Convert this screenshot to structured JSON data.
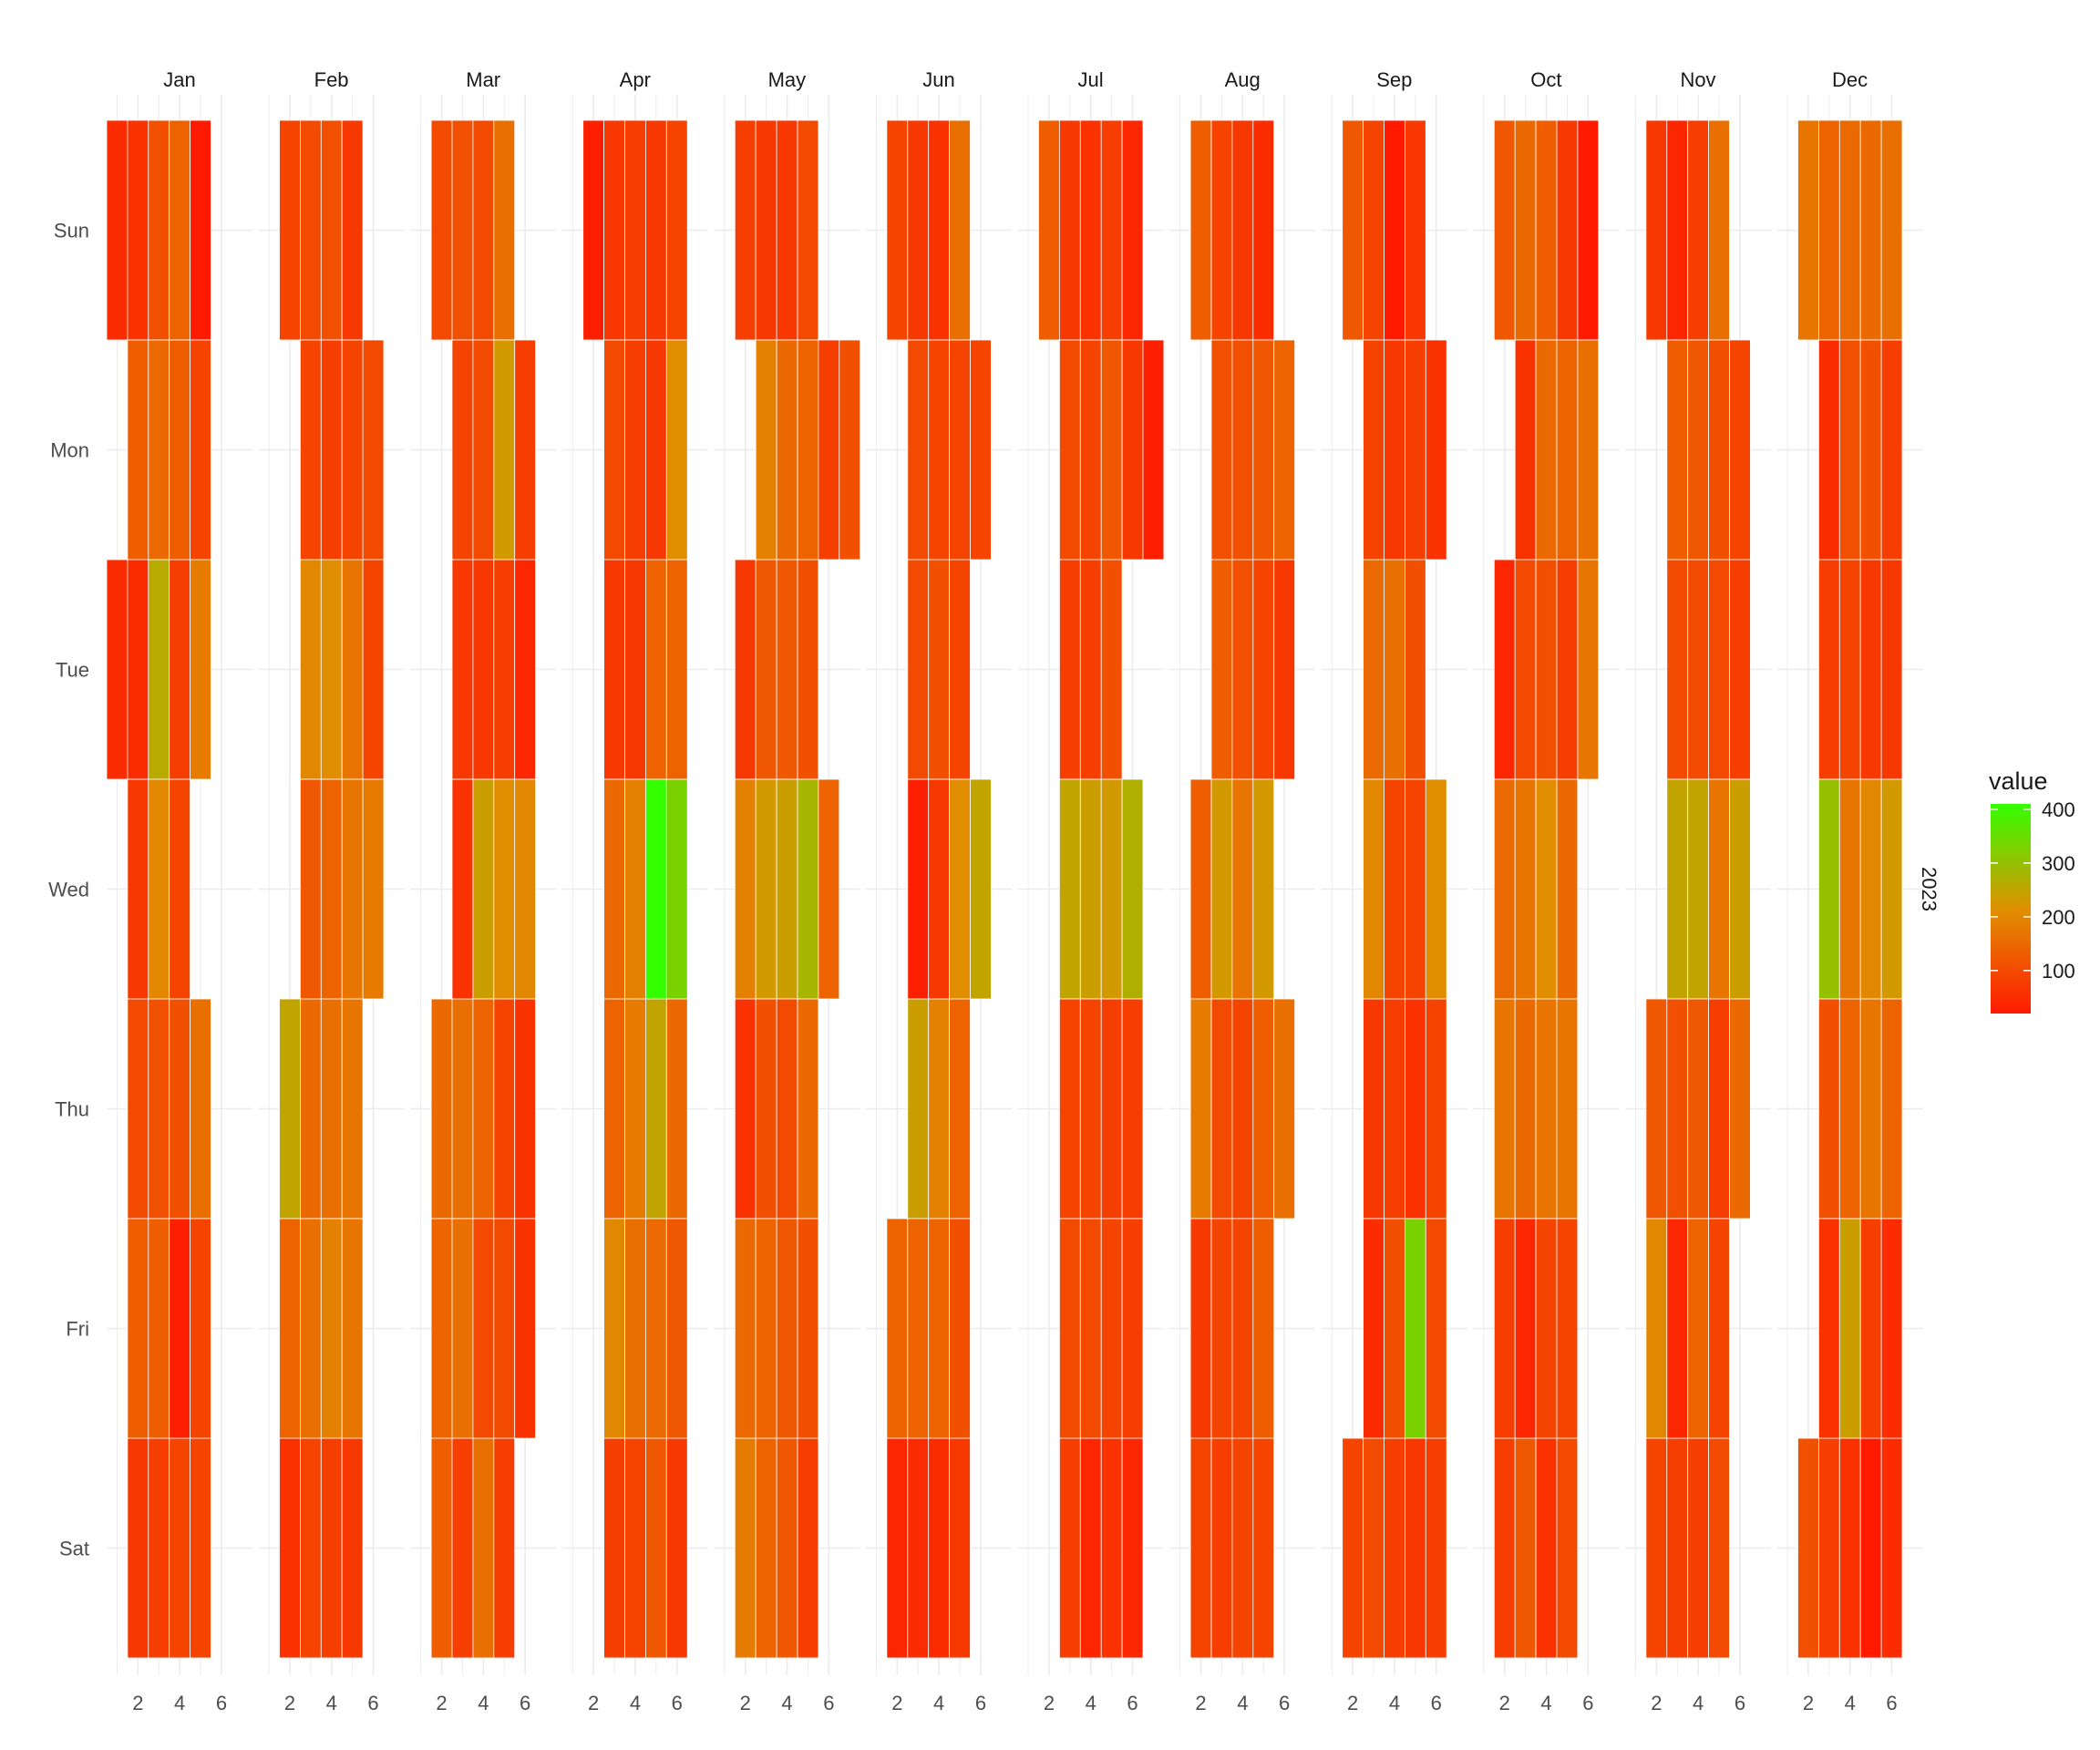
{
  "chart_data": {
    "type": "heatmap",
    "title": "",
    "xlabel": "",
    "ylabel": "",
    "facet_strip": "2023",
    "months": [
      "Jan",
      "Feb",
      "Mar",
      "Apr",
      "May",
      "Jun",
      "Jul",
      "Aug",
      "Sep",
      "Oct",
      "Nov",
      "Dec"
    ],
    "weekdays": [
      "Sun",
      "Mon",
      "Tue",
      "Wed",
      "Thu",
      "Fri",
      "Sat"
    ],
    "x_tick_labels": [
      "2",
      "4",
      "6"
    ],
    "x_ticks": [
      2,
      4,
      6
    ],
    "xlim": [
      0.5,
      6.5
    ],
    "color_scale": {
      "name": "value",
      "low_color": "#ff1a00",
      "mid_color": "#e09000",
      "high_color": "#33ff00",
      "range": [
        20,
        410
      ],
      "ticks": [
        100,
        200,
        300,
        400
      ],
      "tick_labels": [
        "100",
        "200",
        "300",
        "400"
      ]
    },
    "cells": {
      "Jan": [
        [
          50,
          60,
          110,
          140,
          20,
          null
        ],
        [
          null,
          130,
          150,
          130,
          90,
          null
        ],
        [
          50,
          50,
          260,
          80,
          180,
          null
        ],
        [
          null,
          70,
          200,
          90,
          null,
          null
        ],
        [
          null,
          100,
          110,
          110,
          160,
          null
        ],
        [
          null,
          130,
          130,
          30,
          90,
          null
        ],
        [
          null,
          70,
          80,
          90,
          90,
          null
        ]
      ],
      "Feb": [
        [
          null,
          90,
          100,
          110,
          70,
          null
        ],
        [
          null,
          null,
          90,
          80,
          90,
          100
        ],
        [
          null,
          null,
          200,
          210,
          170,
          90
        ],
        [
          null,
          null,
          120,
          140,
          170,
          180
        ],
        [
          null,
          250,
          150,
          160,
          170,
          null
        ],
        [
          null,
          140,
          160,
          190,
          170,
          null
        ],
        [
          null,
          60,
          90,
          80,
          70,
          null
        ]
      ],
      "Mar": [
        [
          null,
          100,
          110,
          100,
          160,
          null
        ],
        [
          null,
          null,
          90,
          100,
          230,
          80
        ],
        [
          null,
          null,
          70,
          70,
          80,
          40
        ],
        [
          null,
          null,
          60,
          240,
          210,
          200
        ],
        [
          null,
          150,
          160,
          140,
          90,
          60
        ],
        [
          null,
          140,
          160,
          100,
          100,
          60
        ],
        [
          null,
          130,
          80,
          160,
          80,
          null
        ]
      ],
      "Apr": [
        [
          null,
          30,
          70,
          80,
          70,
          90
        ],
        [
          null,
          null,
          100,
          80,
          70,
          210
        ],
        [
          null,
          null,
          70,
          70,
          140,
          140
        ],
        [
          null,
          null,
          150,
          190,
          410,
          330
        ],
        [
          null,
          null,
          140,
          180,
          250,
          150
        ],
        [
          null,
          null,
          200,
          160,
          150,
          120
        ],
        [
          null,
          null,
          80,
          90,
          120,
          70
        ]
      ],
      "May": [
        [
          null,
          80,
          70,
          70,
          100,
          null
        ],
        [
          null,
          null,
          190,
          150,
          140,
          80,
          110
        ],
        [
          null,
          70,
          120,
          120,
          110,
          null
        ],
        [
          null,
          190,
          230,
          240,
          280,
          140
        ],
        [
          null,
          60,
          110,
          100,
          150,
          null
        ],
        [
          null,
          150,
          140,
          120,
          110,
          null
        ],
        [
          null,
          180,
          140,
          120,
          80,
          null
        ]
      ],
      "Jun": [
        [
          null,
          90,
          70,
          60,
          160,
          null
        ],
        [
          null,
          null,
          100,
          90,
          90,
          90
        ],
        [
          null,
          null,
          100,
          110,
          90,
          null
        ],
        [
          null,
          null,
          30,
          70,
          210,
          250
        ],
        [
          null,
          null,
          240,
          190,
          140,
          null
        ],
        [
          null,
          140,
          140,
          140,
          110,
          null
        ],
        [
          null,
          40,
          50,
          50,
          70,
          null
        ]
      ],
      "Jul": [
        [
          null,
          130,
          70,
          60,
          80,
          40,
          null
        ],
        [
          null,
          null,
          100,
          90,
          120,
          70,
          30
        ],
        [
          null,
          null,
          80,
          80,
          110,
          null
        ],
        [
          null,
          null,
          250,
          240,
          230,
          270
        ],
        [
          null,
          null,
          90,
          90,
          80,
          80
        ],
        [
          null,
          null,
          100,
          100,
          90,
          80
        ],
        [
          null,
          null,
          80,
          40,
          60,
          40
        ]
      ],
      "Aug": [
        [
          null,
          130,
          90,
          70,
          50,
          null
        ],
        [
          null,
          null,
          110,
          110,
          120,
          140
        ],
        [
          null,
          null,
          130,
          110,
          90,
          70
        ],
        [
          null,
          130,
          230,
          170,
          230,
          null
        ],
        [
          null,
          180,
          100,
          90,
          130,
          160
        ],
        [
          null,
          70,
          90,
          90,
          130,
          null
        ],
        [
          null,
          90,
          80,
          90,
          90,
          null
        ]
      ],
      "Sep": [
        [
          null,
          120,
          90,
          20,
          70,
          null
        ],
        [
          null,
          null,
          90,
          70,
          80,
          60
        ],
        [
          null,
          null,
          150,
          160,
          110,
          null
        ],
        [
          null,
          null,
          200,
          90,
          90,
          210
        ],
        [
          null,
          null,
          70,
          80,
          60,
          90
        ],
        [
          null,
          null,
          50,
          110,
          330,
          100
        ],
        [
          null,
          90,
          100,
          80,
          70,
          80
        ]
      ],
      "Oct": [
        [
          null,
          120,
          150,
          130,
          70,
          20
        ],
        [
          null,
          null,
          60,
          150,
          140,
          160
        ],
        [
          null,
          40,
          100,
          110,
          80,
          170
        ],
        [
          null,
          150,
          170,
          210,
          150,
          null
        ],
        [
          null,
          170,
          150,
          170,
          170,
          null
        ],
        [
          null,
          80,
          40,
          90,
          90,
          null
        ],
        [
          null,
          80,
          120,
          60,
          100,
          null
        ]
      ],
      "Nov": [
        [
          null,
          70,
          40,
          80,
          160,
          null
        ],
        [
          null,
          null,
          130,
          120,
          110,
          90
        ],
        [
          null,
          null,
          100,
          100,
          100,
          80
        ],
        [
          null,
          null,
          250,
          250,
          170,
          240
        ],
        [
          null,
          120,
          110,
          120,
          80,
          150
        ],
        [
          null,
          200,
          40,
          140,
          90,
          null
        ],
        [
          null,
          90,
          80,
          80,
          100,
          null
        ]
      ],
      "Dec": [
        [
          null,
          170,
          140,
          150,
          150,
          160
        ],
        [
          null,
          null,
          50,
          110,
          110,
          80
        ],
        [
          null,
          null,
          80,
          90,
          70,
          70
        ],
        [
          null,
          null,
          300,
          170,
          200,
          230
        ],
        [
          null,
          null,
          110,
          140,
          170,
          140
        ],
        [
          null,
          null,
          60,
          240,
          80,
          50
        ],
        [
          null,
          110,
          80,
          60,
          20,
          50
        ]
      ]
    }
  }
}
